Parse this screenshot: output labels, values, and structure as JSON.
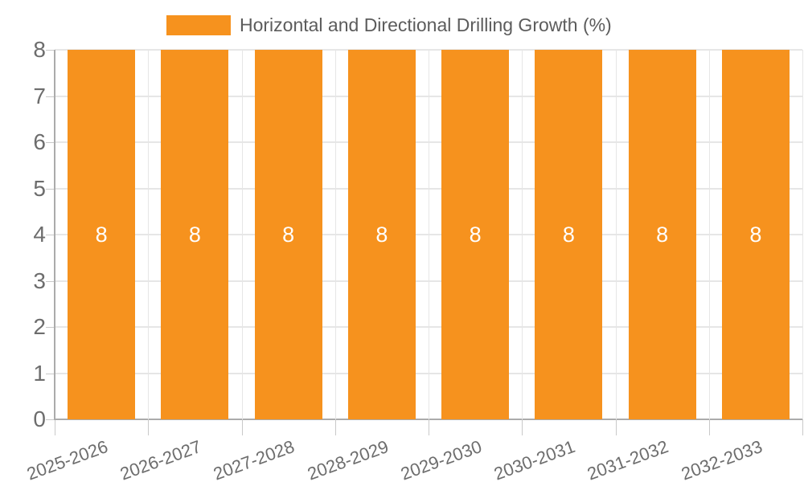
{
  "chart_data": {
    "type": "bar",
    "title": "Horizontal and Directional Drilling Growth (%)",
    "categories": [
      "2025-2026",
      "2026-2027",
      "2027-2028",
      "2028-2029",
      "2029-2030",
      "2030-2031",
      "2031-2032",
      "2032-2033"
    ],
    "values": [
      8,
      8,
      8,
      8,
      8,
      8,
      8,
      8
    ],
    "bar_labels": [
      "8",
      "8",
      "8",
      "8",
      "8",
      "8",
      "8",
      "8"
    ],
    "ylim": [
      0,
      8
    ],
    "yticks": [
      0,
      1,
      2,
      3,
      4,
      5,
      6,
      7,
      8
    ],
    "grid": true,
    "legend_position": "top",
    "colors": {
      "bar": "#F6921E",
      "bar_label": "#ffffff",
      "gridline": "#e6e6e6",
      "axis_line": "#ababab",
      "tick_mark": "#c9c9c9",
      "axis_text": "#6d6d6d",
      "legend_text": "#5c5c5c",
      "background": "#ffffff"
    }
  }
}
